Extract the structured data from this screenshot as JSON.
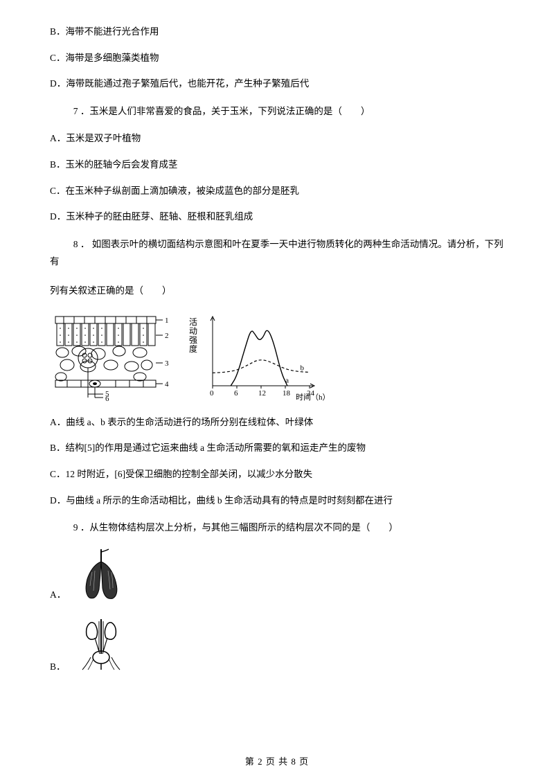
{
  "colors": {
    "text": "#000000",
    "background": "#ffffff",
    "stroke": "#000000"
  },
  "q6": {
    "optB": "B．海带不能进行光合作用",
    "optC": "C．海带是多细胞藻类植物",
    "optD": "D．海带既能通过孢子繁殖后代，也能开花，产生种子繁殖后代"
  },
  "q7": {
    "stem": "7 ．玉米是人们非常喜爱的食品，关于玉米，下列说法正确的是（　　）",
    "optA": "A．玉米是双子叶植物",
    "optB": "B．玉米的胚轴今后会发育成茎",
    "optC": "C．在玉米种子纵剖面上滴加碘液，被染成蓝色的部分是胚乳",
    "optD": "D．玉米种子的胚由胚芽、胚轴、胚根和胚乳组成"
  },
  "q8": {
    "stem": "8 ． 如图表示叶的横切面结构示意图和叶在夏季一天中进行物质转化的两种生命活动情况。请分析，下列有",
    "stemCont": "列有关叙述正确的是（　　）",
    "optA": "A．曲线 a、b 表示的生命活动进行的场所分别在线粒体、叶绿体",
    "optB": "B．结构[5]的作用是通过它运来曲线 a 生命活动所需要的氧和运走产生的废物",
    "optC": "C．12 时附近，[6]受保卫细胞的控制全部关闭，以减少水分散失",
    "optD": "D．与曲线 a 所示的生命活动相比，曲线 b 生命活动具有的特点是时时刻刻都在进行"
  },
  "q9": {
    "stem": "9 ．从生物体结构层次上分析，与其他三幅图所示的结构层次不同的是（　　）",
    "optA": "A．",
    "optB": "B．"
  },
  "leafDiagram": {
    "labels": [
      "1",
      "2",
      "3",
      "4",
      "5",
      "6"
    ]
  },
  "chart": {
    "ylabel": "活动强度",
    "xlabel": "时间（h）",
    "xticks": [
      "0",
      "6",
      "12",
      "18",
      "24"
    ],
    "lineA_label": "a",
    "lineB_label": "b",
    "xlim": [
      0,
      24
    ],
    "ylim": [
      0,
      100
    ],
    "lineA_dash": "none",
    "lineB_dash": "4,3",
    "lineA_points": [
      [
        4.5,
        0
      ],
      [
        6,
        15
      ],
      [
        8,
        58
      ],
      [
        9.5,
        88
      ],
      [
        10.5,
        80
      ],
      [
        11.5,
        70
      ],
      [
        12.5,
        75
      ],
      [
        13.5,
        90
      ],
      [
        15,
        70
      ],
      [
        17,
        20
      ],
      [
        18.5,
        0
      ]
    ],
    "lineB_points": [
      [
        0,
        20
      ],
      [
        3,
        21
      ],
      [
        6,
        24
      ],
      [
        9,
        33
      ],
      [
        11,
        40
      ],
      [
        13,
        40
      ],
      [
        15,
        35
      ],
      [
        18,
        26
      ],
      [
        21,
        22
      ],
      [
        24,
        21
      ]
    ]
  },
  "footer": {
    "text": "第 2 页 共 8 页"
  }
}
